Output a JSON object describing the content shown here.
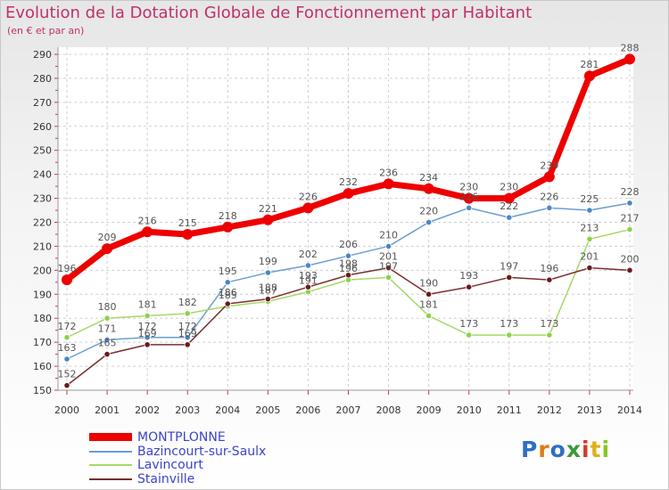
{
  "title": "Evolution de la Dotation Globale de Fonctionnement par Habitant",
  "subtitle": "(en € et par an)",
  "logo_text": "Proxiti",
  "chart_data": {
    "type": "line",
    "title": "Evolution de la Dotation Globale de Fonctionnement par Habitant",
    "subtitle": "(en € et par an)",
    "x": [
      2000,
      2001,
      2002,
      2003,
      2004,
      2005,
      2006,
      2007,
      2008,
      2009,
      2010,
      2011,
      2012,
      2013,
      2014
    ],
    "ylim": [
      150,
      290
    ],
    "yticks": [
      150,
      160,
      170,
      180,
      190,
      200,
      210,
      220,
      230,
      240,
      250,
      260,
      270,
      280,
      290
    ],
    "grid": true,
    "legend_position": "bottom-left",
    "series": [
      {
        "name": "MONTPLONNE",
        "color": "#ee0000",
        "marker_color": "#ee0000",
        "label_color": "#555555",
        "values": [
          196,
          209,
          216,
          215,
          218,
          221,
          226,
          232,
          236,
          234,
          230,
          230,
          239,
          281,
          288
        ]
      },
      {
        "name": "Bazincourt-sur-Saulx",
        "color": "#6a9fd2",
        "marker_color": "#4a86c8",
        "label_color": "#555555",
        "values": [
          163,
          171,
          172,
          172,
          195,
          199,
          202,
          206,
          210,
          220,
          226,
          222,
          226,
          225,
          228
        ]
      },
      {
        "name": "Lavincourt",
        "color": "#a6d86a",
        "marker_color": "#8cd24a",
        "label_color": "#555555",
        "values": [
          172,
          180,
          181,
          182,
          185,
          187,
          191,
          196,
          197,
          181,
          173,
          173,
          173,
          213,
          217
        ]
      },
      {
        "name": "Stainville",
        "color": "#7a2e2e",
        "marker_color": "#6b1a1a",
        "label_color": "#555555",
        "values": [
          152,
          165,
          169,
          169,
          186,
          188,
          193,
          198,
          201,
          190,
          193,
          197,
          196,
          201,
          200
        ]
      }
    ]
  }
}
